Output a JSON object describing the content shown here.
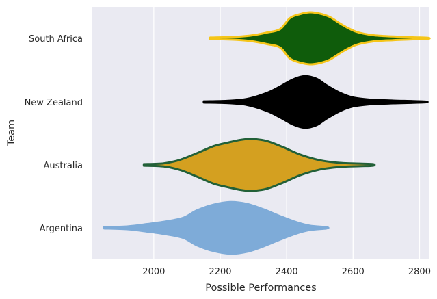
{
  "chart_data": {
    "type": "violin",
    "xlabel": "Possible Performances",
    "ylabel": "Team",
    "xlim": [
      1815,
      2830
    ],
    "x_ticks": [
      2000,
      2200,
      2400,
      2600,
      2800
    ],
    "grid": true,
    "legend": "none",
    "colors": {
      "background": "#eaeaf2",
      "grid": "#ffffff",
      "text": "#262626"
    },
    "categories": [
      "South Africa",
      "New Zealand",
      "Australia",
      "Argentina"
    ],
    "series": [
      {
        "name": "South Africa",
        "fill": "#0f5c0b",
        "edge": "#f5c518",
        "min": 2170,
        "max": 2825,
        "profile": [
          [
            2170,
            0.03
          ],
          [
            2250,
            0.06
          ],
          [
            2300,
            0.12
          ],
          [
            2340,
            0.22
          ],
          [
            2380,
            0.35
          ],
          [
            2410,
            0.78
          ],
          [
            2440,
            0.93
          ],
          [
            2470,
            1.0
          ],
          [
            2500,
            0.95
          ],
          [
            2530,
            0.82
          ],
          [
            2570,
            0.5
          ],
          [
            2610,
            0.25
          ],
          [
            2660,
            0.12
          ],
          [
            2720,
            0.07
          ],
          [
            2780,
            0.04
          ],
          [
            2825,
            0.02
          ]
        ]
      },
      {
        "name": "New Zealand",
        "fill": "#000000",
        "edge": "#000000",
        "min": 2150,
        "max": 2820,
        "profile": [
          [
            2150,
            0.03
          ],
          [
            2220,
            0.05
          ],
          [
            2280,
            0.12
          ],
          [
            2340,
            0.35
          ],
          [
            2380,
            0.6
          ],
          [
            2420,
            0.88
          ],
          [
            2455,
            1.0
          ],
          [
            2490,
            0.9
          ],
          [
            2520,
            0.65
          ],
          [
            2560,
            0.36
          ],
          [
            2600,
            0.18
          ],
          [
            2650,
            0.1
          ],
          [
            2720,
            0.06
          ],
          [
            2780,
            0.04
          ],
          [
            2820,
            0.02
          ]
        ]
      },
      {
        "name": "Australia",
        "fill": "#d4a020",
        "edge": "#226038",
        "min": 1970,
        "max": 2660,
        "profile": [
          [
            1970,
            0.03
          ],
          [
            2030,
            0.06
          ],
          [
            2080,
            0.2
          ],
          [
            2130,
            0.45
          ],
          [
            2180,
            0.72
          ],
          [
            2220,
            0.85
          ],
          [
            2260,
            0.96
          ],
          [
            2295,
            1.0
          ],
          [
            2340,
            0.92
          ],
          [
            2390,
            0.68
          ],
          [
            2440,
            0.4
          ],
          [
            2500,
            0.18
          ],
          [
            2560,
            0.08
          ],
          [
            2620,
            0.05
          ],
          [
            2660,
            0.03
          ]
        ]
      },
      {
        "name": "Argentina",
        "fill": "#7eabd8",
        "edge": "#7eabd8",
        "min": 1850,
        "max": 2520,
        "profile": [
          [
            1850,
            0.03
          ],
          [
            1920,
            0.06
          ],
          [
            1980,
            0.15
          ],
          [
            2040,
            0.26
          ],
          [
            2090,
            0.4
          ],
          [
            2130,
            0.68
          ],
          [
            2180,
            0.9
          ],
          [
            2230,
            1.0
          ],
          [
            2280,
            0.93
          ],
          [
            2330,
            0.72
          ],
          [
            2380,
            0.46
          ],
          [
            2430,
            0.22
          ],
          [
            2470,
            0.09
          ],
          [
            2520,
            0.03
          ]
        ]
      }
    ]
  }
}
